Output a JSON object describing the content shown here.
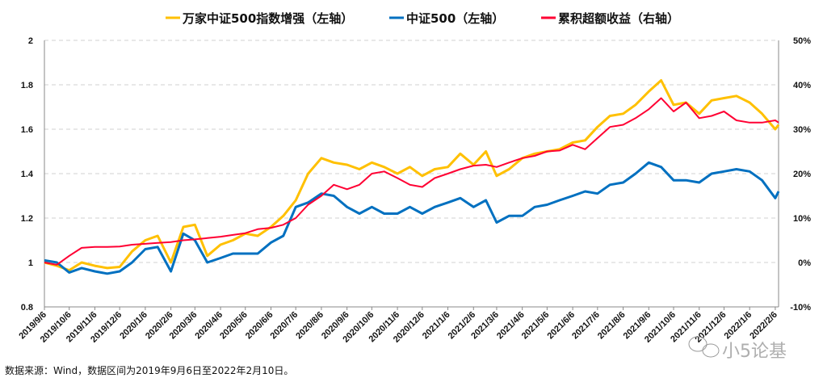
{
  "chart_data": {
    "type": "line",
    "title": "",
    "legend_position": "top",
    "grid": "horizontal dashed",
    "left_axis": {
      "ylim": [
        0.8,
        2.0
      ],
      "ticks": [
        "0.8",
        "1",
        "1.2",
        "1.4",
        "1.6",
        "1.8",
        "2"
      ],
      "values": [
        0.8,
        1.0,
        1.2,
        1.4,
        1.6,
        1.8,
        2.0
      ]
    },
    "right_axis": {
      "ylim": [
        -10,
        50
      ],
      "unit": "%",
      "ticks": [
        "-10%",
        "0%",
        "10%",
        "20%",
        "30%",
        "40%",
        "50%"
      ],
      "values": [
        -10,
        0,
        10,
        20,
        30,
        40,
        50
      ]
    },
    "x_ticks": [
      "2019/9/6",
      "2019/10/6",
      "2019/11/6",
      "2019/12/6",
      "2020/1/6",
      "2020/2/6",
      "2020/3/6",
      "2020/4/6",
      "2020/5/6",
      "2020/6/6",
      "2020/7/6",
      "2020/8/6",
      "2020/9/6",
      "2020/10/6",
      "2020/11/6",
      "2020/12/6",
      "2021/1/6",
      "2021/2/6",
      "2021/3/6",
      "2021/4/6",
      "2021/5/6",
      "2021/6/6",
      "2021/7/6",
      "2021/8/6",
      "2021/9/6",
      "2021/10/6",
      "2021/11/6",
      "2021/12/6",
      "2022/1/6",
      "2022/2/6"
    ],
    "x": [
      "2019-09-06",
      "2019-09-21",
      "2019-10-06",
      "2019-10-21",
      "2019-11-06",
      "2019-11-21",
      "2019-12-06",
      "2019-12-21",
      "2020-01-06",
      "2020-01-21",
      "2020-02-06",
      "2020-02-21",
      "2020-03-06",
      "2020-03-21",
      "2020-04-06",
      "2020-04-21",
      "2020-05-06",
      "2020-05-21",
      "2020-06-06",
      "2020-06-21",
      "2020-07-06",
      "2020-07-21",
      "2020-08-06",
      "2020-08-21",
      "2020-09-06",
      "2020-09-21",
      "2020-10-06",
      "2020-10-21",
      "2020-11-06",
      "2020-11-21",
      "2020-12-06",
      "2020-12-21",
      "2021-01-06",
      "2021-01-21",
      "2021-02-06",
      "2021-02-21",
      "2021-03-06",
      "2021-03-21",
      "2021-04-06",
      "2021-04-21",
      "2021-05-06",
      "2021-05-21",
      "2021-06-06",
      "2021-06-21",
      "2021-07-06",
      "2021-07-21",
      "2021-08-06",
      "2021-08-21",
      "2021-09-06",
      "2021-09-21",
      "2021-10-06",
      "2021-10-21",
      "2021-11-06",
      "2021-11-21",
      "2021-12-06",
      "2021-12-21",
      "2022-01-06",
      "2022-01-21",
      "2022-02-06",
      "2022-02-10"
    ],
    "series": [
      {
        "name": "万家中证500指数增强（左轴）",
        "axis": "left",
        "color": "#FFC000",
        "values": [
          1.0,
          0.985,
          0.965,
          1.0,
          0.985,
          0.975,
          0.98,
          1.05,
          1.1,
          1.12,
          1.0,
          1.16,
          1.17,
          1.03,
          1.08,
          1.1,
          1.13,
          1.12,
          1.16,
          1.21,
          1.28,
          1.4,
          1.47,
          1.45,
          1.44,
          1.42,
          1.45,
          1.43,
          1.4,
          1.43,
          1.39,
          1.42,
          1.43,
          1.49,
          1.44,
          1.5,
          1.39,
          1.42,
          1.47,
          1.49,
          1.5,
          1.51,
          1.54,
          1.55,
          1.61,
          1.66,
          1.67,
          1.71,
          1.77,
          1.82,
          1.71,
          1.72,
          1.67,
          1.73,
          1.74,
          1.75,
          1.72,
          1.67,
          1.6,
          1.62
        ]
      },
      {
        "name": "中证500（左轴）",
        "axis": "left",
        "color": "#0070C0",
        "values": [
          1.01,
          1.0,
          0.955,
          0.975,
          0.96,
          0.95,
          0.96,
          1.0,
          1.06,
          1.07,
          0.96,
          1.13,
          1.1,
          1.0,
          1.02,
          1.04,
          1.04,
          1.04,
          1.09,
          1.12,
          1.25,
          1.27,
          1.31,
          1.3,
          1.25,
          1.22,
          1.25,
          1.22,
          1.22,
          1.25,
          1.22,
          1.25,
          1.27,
          1.29,
          1.25,
          1.28,
          1.18,
          1.21,
          1.21,
          1.25,
          1.26,
          1.28,
          1.3,
          1.32,
          1.31,
          1.35,
          1.36,
          1.4,
          1.45,
          1.43,
          1.37,
          1.37,
          1.36,
          1.4,
          1.41,
          1.42,
          1.41,
          1.37,
          1.29,
          1.32
        ]
      },
      {
        "name": "累积超额收益（右轴）",
        "axis": "right",
        "color": "#FF0033",
        "values": [
          0,
          -0.5,
          1.5,
          3.3,
          3.5,
          3.5,
          3.6,
          4,
          4.2,
          4.4,
          4.6,
          5,
          5.2,
          5.5,
          5.8,
          6.2,
          6.6,
          7.5,
          7.8,
          8.5,
          10,
          13,
          15,
          17.5,
          16.5,
          17.5,
          20,
          20.5,
          19,
          17.5,
          17,
          19,
          20,
          21,
          21.8,
          22,
          21.5,
          22.5,
          23.5,
          24,
          25,
          25.2,
          26.5,
          25.5,
          28,
          30.5,
          31,
          32.5,
          34.5,
          37,
          34,
          36,
          32.5,
          33,
          34,
          32,
          31.5,
          31.5,
          32,
          31.5
        ]
      }
    ]
  },
  "footer": "数据来源：Wind，数据区间为2019年9月6日至2022年2月10日。",
  "watermark": "小5论基"
}
